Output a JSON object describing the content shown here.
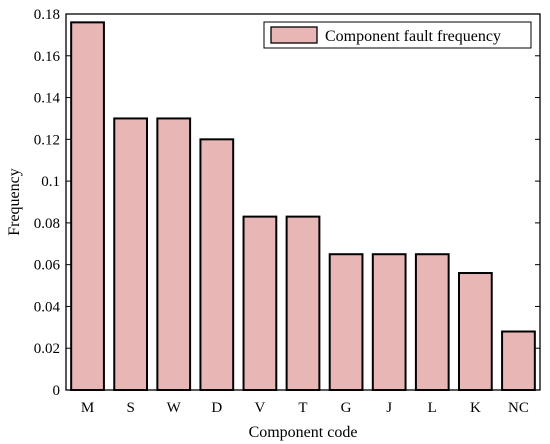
{
  "chart_data": {
    "type": "bar",
    "categories": [
      "M",
      "S",
      "W",
      "D",
      "V",
      "T",
      "G",
      "J",
      "L",
      "K",
      "NC"
    ],
    "series": [
      {
        "name": "Component fault frequency",
        "values": [
          0.176,
          0.13,
          0.13,
          0.12,
          0.083,
          0.083,
          0.065,
          0.065,
          0.065,
          0.056,
          0.028
        ]
      }
    ],
    "xlabel": "Component code",
    "ylabel": "Frequency",
    "ylim": [
      0,
      0.18
    ],
    "yticks": [
      "0",
      "0.02",
      "0.04",
      "0.06",
      "0.08",
      "0.1",
      "0.12",
      "0.14",
      "0.16",
      "0.18"
    ],
    "grid": false,
    "legend_position": "top-right",
    "bar_color": "#e8b7b5",
    "bar_edge_color": "#000000"
  }
}
